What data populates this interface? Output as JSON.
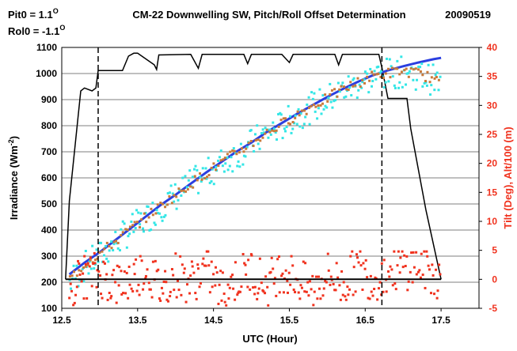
{
  "chart_data": {
    "type": "scatter",
    "title": "CM-22 Downwelling SW, Pitch/Roll Offset Determination",
    "date": "20090519",
    "offsets": [
      {
        "label": "Pit0 = 1.1",
        "unit": "O"
      },
      {
        "label": "Rol0 = -1.1",
        "unit": "O"
      }
    ],
    "xlabel": "UTC (Hour)",
    "ylabel_left": "Irradiance (Wm",
    "ylabel_left_sup": "-2",
    "ylabel_left_close": ")",
    "ylabel_right": "Tilt (Deg), Alt/100 (m)",
    "xlim": [
      12.5,
      18.0
    ],
    "ylim_left": [
      100,
      1100
    ],
    "ylim_right": [
      -5,
      40
    ],
    "xticks": [
      "12.5",
      "13.5",
      "14.5",
      "15.5",
      "16.5",
      "17.5"
    ],
    "xtick_values": [
      12.5,
      13.5,
      14.5,
      15.5,
      16.5,
      17.5
    ],
    "yticks_left": [
      100,
      200,
      300,
      400,
      500,
      600,
      700,
      800,
      900,
      1000,
      1100
    ],
    "yticks_right": [
      -5,
      0,
      5,
      10,
      15,
      20,
      25,
      30,
      35,
      40
    ],
    "grid": "horizontal",
    "vlines": [
      12.98,
      16.72
    ],
    "series": [
      {
        "axis": "right",
        "color": "#000000",
        "style": "line",
        "x": [
          12.55,
          12.6,
          12.75,
          12.8,
          12.9,
          12.95,
          12.98,
          13.3,
          13.38,
          13.45,
          13.5,
          13.72,
          13.75,
          13.78,
          14.2,
          14.3,
          14.35,
          14.9,
          14.95,
          15.0,
          15.4,
          15.5,
          15.55,
          16.1,
          16.15,
          16.2,
          16.45,
          16.68,
          16.72,
          16.8,
          17.05,
          17.1,
          17.3,
          17.5
        ],
        "y": [
          0,
          13.5,
          32.5,
          33,
          32.5,
          33,
          36,
          36,
          38.5,
          39,
          39,
          37,
          36.2,
          38.7,
          38.8,
          36.4,
          38.8,
          38.8,
          37.2,
          38.8,
          38.8,
          37.4,
          38.8,
          38.8,
          37,
          38.8,
          38.8,
          38.8,
          36.5,
          31.2,
          31.2,
          26,
          12,
          0
        ]
      },
      {
        "axis": "left",
        "color": "#2b3fe0",
        "style": "line",
        "x": [
          12.6,
          12.8,
          13.0,
          13.2,
          13.4,
          13.6,
          13.8,
          14.0,
          14.2,
          14.4,
          14.6,
          14.8,
          15.0,
          15.2,
          15.4,
          15.6,
          15.8,
          16.0,
          16.2,
          16.4,
          16.6,
          16.8,
          17.0,
          17.2,
          17.4,
          17.5
        ],
        "y": [
          230,
          275,
          315,
          360,
          405,
          450,
          495,
          535,
          578,
          620,
          660,
          700,
          735,
          775,
          810,
          845,
          878,
          910,
          940,
          968,
          993,
          1012,
          1028,
          1042,
          1055,
          1060
        ]
      },
      {
        "axis": "left",
        "color": "#33e6e6",
        "style": "points",
        "x": [
          12.6,
          12.8,
          13.0,
          13.2,
          13.4,
          13.6,
          13.8,
          14.0,
          14.2,
          14.4,
          14.6,
          14.8,
          15.0,
          15.2,
          15.4,
          15.6,
          15.8,
          16.0,
          16.2,
          16.4,
          16.6,
          16.8,
          17.0,
          17.2,
          17.4,
          17.5
        ],
        "y": [
          200,
          260,
          300,
          350,
          400,
          440,
          490,
          530,
          575,
          610,
          655,
          690,
          730,
          770,
          800,
          840,
          870,
          900,
          935,
          960,
          985,
          1000,
          1005,
          995,
          975,
          955
        ]
      },
      {
        "axis": "left",
        "color": "#c97a3a",
        "style": "points",
        "x": [
          12.6,
          12.8,
          13.0,
          13.2,
          13.4,
          13.6,
          13.8,
          14.0,
          14.2,
          14.4,
          14.6,
          14.8,
          15.0,
          15.2,
          15.4,
          15.6,
          15.8,
          16.0,
          16.2,
          16.4,
          16.6,
          16.8,
          17.0,
          17.2,
          17.4,
          17.5
        ],
        "y": [
          210,
          270,
          310,
          355,
          402,
          446,
          492,
          533,
          577,
          618,
          657,
          697,
          732,
          772,
          806,
          842,
          875,
          905,
          938,
          965,
          990,
          1002,
          1010,
          1000,
          980,
          950
        ]
      },
      {
        "axis": "right",
        "color": "#f0321e",
        "style": "points",
        "x": [
          12.6,
          12.8,
          13.0,
          13.2,
          13.4,
          13.6,
          13.8,
          14.0,
          14.2,
          14.4,
          14.6,
          14.8,
          15.0,
          15.2,
          15.4,
          15.6,
          15.8,
          16.0,
          16.2,
          16.4,
          16.6,
          16.8,
          17.0,
          17.2,
          17.4,
          17.5
        ],
        "y": [
          -1,
          0.5,
          1,
          -1,
          0,
          2,
          -1.5,
          1,
          -0.5,
          2,
          -2,
          0,
          1.5,
          -1,
          2,
          0,
          -2,
          1,
          -1,
          2,
          0,
          1.5,
          2,
          2.5,
          1,
          0
        ]
      },
      {
        "axis": "right",
        "color": "#000000",
        "style": "hline",
        "x": [
          12.55,
          17.5
        ],
        "y": [
          0,
          0
        ]
      }
    ]
  }
}
